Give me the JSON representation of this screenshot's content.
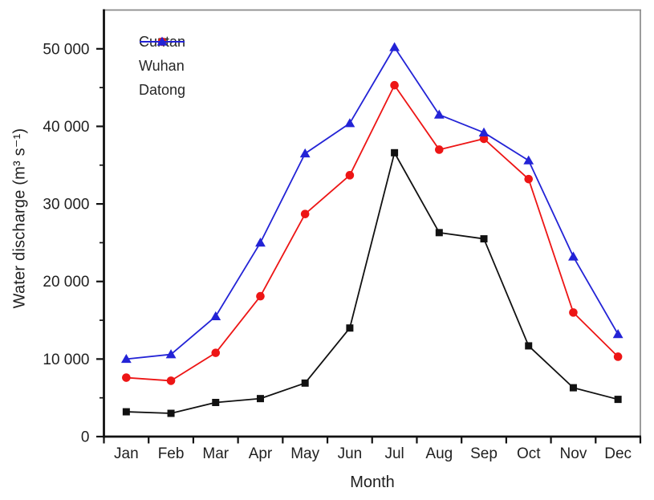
{
  "chart_data": {
    "type": "line",
    "title": "",
    "xlabel": "Month",
    "ylabel": "Water discharge (m³ s⁻¹)",
    "categories": [
      "Jan",
      "Feb",
      "Mar",
      "Apr",
      "May",
      "Jun",
      "Jul",
      "Aug",
      "Sep",
      "Oct",
      "Nov",
      "Dec"
    ],
    "series": [
      {
        "name": "Cuntan",
        "marker": "square",
        "color": "#111111",
        "values": [
          3200,
          3000,
          4400,
          4900,
          6900,
          14000,
          36600,
          26300,
          25500,
          11700,
          6300,
          4800
        ]
      },
      {
        "name": "Wuhan",
        "marker": "circle",
        "color": "#ed1515",
        "values": [
          7600,
          7200,
          10800,
          18100,
          28700,
          33700,
          45300,
          37000,
          38400,
          33200,
          16000,
          10300
        ]
      },
      {
        "name": "Datong",
        "marker": "triangle",
        "color": "#2323d6",
        "values": [
          10000,
          10600,
          15500,
          25000,
          36500,
          40400,
          50200,
          41500,
          39200,
          35600,
          23200,
          13200
        ]
      }
    ],
    "ylim": [
      0,
      55000
    ],
    "y_major_ticks": [
      0,
      10000,
      20000,
      30000,
      40000,
      50000
    ],
    "y_tick_labels": [
      "0",
      "10 000",
      "20 000",
      "30 000",
      "40 000",
      "50 000"
    ],
    "y_minor_step": 5000,
    "grid": false,
    "legend_position": "top-left",
    "axis_color": "#111111",
    "frame_color": "#8a8a8a",
    "tick_label_color": "#1f1f1f"
  }
}
